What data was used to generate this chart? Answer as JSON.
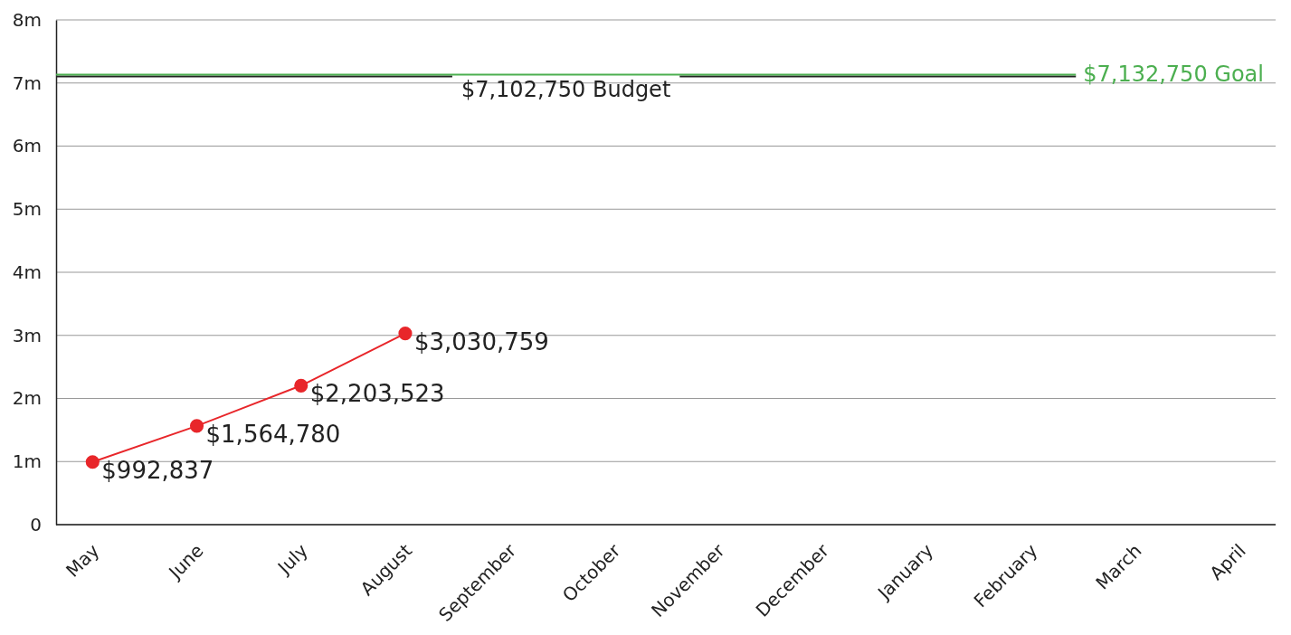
{
  "chart_data": {
    "type": "line",
    "categories": [
      "May",
      "June",
      "July",
      "August",
      "September",
      "October",
      "November",
      "December",
      "January",
      "February",
      "March",
      "April"
    ],
    "series": [
      {
        "color": "#e8262a",
        "values": [
          992837,
          1564780,
          2203523,
          3030759,
          null,
          null,
          null,
          null,
          null,
          null,
          null,
          null
        ],
        "value_labels": [
          "$992,837",
          "$1,564,780",
          "$2,203,523",
          "$3,030,759",
          null,
          null,
          null,
          null,
          null,
          null,
          null,
          null
        ]
      }
    ],
    "ylim": [
      0,
      8000000
    ],
    "yticks": [
      0,
      {
        "value": 1000000,
        "label": "1m"
      },
      {
        "value": 2000000,
        "label": "2m"
      },
      {
        "value": 3000000,
        "label": "3m"
      },
      {
        "value": 4000000,
        "label": "4m"
      },
      {
        "value": 5000000,
        "label": "5m"
      },
      {
        "value": 6000000,
        "label": "6m"
      },
      {
        "value": 7000000,
        "label": "7m"
      },
      {
        "value": 8000000,
        "label": "8m"
      }
    ],
    "grid": "y",
    "marker": "circle",
    "line_style": "solid",
    "ref_lines": [
      {
        "axis": "y",
        "value": 7102750,
        "label": "$7,102,750 Budget",
        "color": "#222222"
      },
      {
        "axis": "y",
        "value": 7132750,
        "label": "$7,132,750 Goal",
        "color": "#4caf50"
      }
    ]
  }
}
